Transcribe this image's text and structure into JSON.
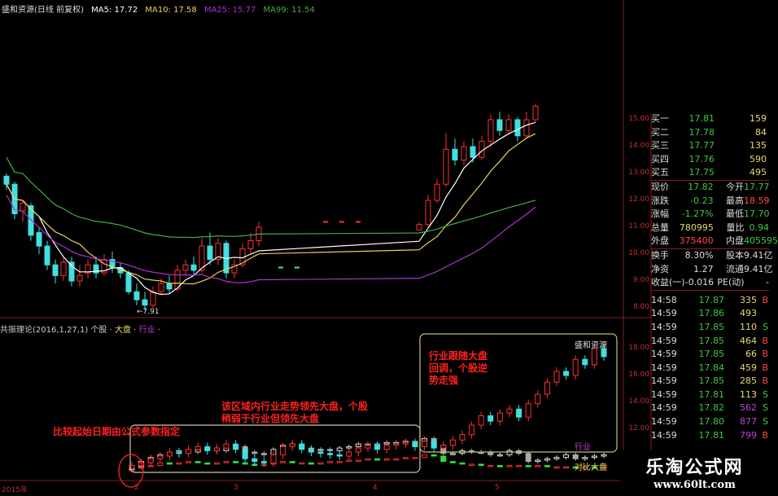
{
  "header": {
    "title": "盛和资源(日线 前复权)",
    "ma5": "MA5: 17.72",
    "ma10": "MA10: 17.58",
    "ma25": "MA25: 15.77",
    "ma99": "MA99: 11.54"
  },
  "colors": {
    "ma5": "#ffffff",
    "ma10": "#e8d060",
    "ma25": "#b030d0",
    "ma99": "#40b040",
    "up": "#ff3030",
    "down": "#40e0e0",
    "axis": "#c03030"
  },
  "main_chart": {
    "price_axis": [
      "15.00",
      "14.00",
      "13.00",
      "12.00",
      "11.00",
      "10.00",
      "9.00",
      "8.00"
    ],
    "low_label": "7.91",
    "candles_left": [
      [
        12.9,
        12.6,
        13.0,
        12.4
      ],
      [
        12.6,
        11.5,
        12.7,
        11.3
      ],
      [
        11.6,
        11.9,
        12.0,
        11.2
      ],
      [
        11.8,
        10.7,
        11.9,
        10.5
      ],
      [
        10.8,
        10.3,
        11.0,
        10.0
      ],
      [
        10.3,
        9.6,
        10.5,
        9.4
      ],
      [
        9.6,
        9.2,
        9.8,
        8.9
      ],
      [
        9.2,
        9.7,
        9.9,
        9.0
      ],
      [
        9.7,
        9.0,
        9.9,
        8.8
      ],
      [
        9.0,
        9.2,
        9.6,
        8.8
      ],
      [
        9.3,
        9.6,
        9.8,
        9.1
      ],
      [
        9.6,
        9.3,
        9.9,
        9.1
      ],
      [
        9.3,
        9.8,
        10.0,
        9.2
      ],
      [
        9.8,
        9.5,
        10.1,
        9.3
      ],
      [
        9.5,
        9.3,
        9.7,
        9.1
      ],
      [
        9.3,
        8.6,
        9.4,
        8.5
      ],
      [
        8.6,
        8.3,
        8.9,
        8.1
      ],
      [
        8.3,
        8.1,
        8.6,
        7.91
      ],
      [
        8.1,
        8.6,
        8.8,
        8.0
      ],
      [
        8.6,
        8.9,
        9.1,
        8.5
      ],
      [
        8.9,
        8.7,
        9.2,
        8.5
      ],
      [
        8.7,
        9.4,
        9.6,
        8.6
      ],
      [
        9.4,
        9.6,
        9.8,
        9.2
      ],
      [
        9.6,
        9.4,
        9.9,
        9.2
      ],
      [
        9.4,
        10.3,
        10.6,
        9.3
      ],
      [
        10.3,
        9.8,
        10.8,
        9.6
      ],
      [
        9.8,
        10.4,
        10.6,
        9.6
      ],
      [
        10.4,
        9.3,
        10.5,
        9.1
      ],
      [
        9.3,
        9.6,
        9.8,
        9.1
      ],
      [
        9.6,
        10.2,
        10.4,
        9.5
      ],
      [
        10.2,
        10.5,
        10.8,
        10.0
      ],
      [
        10.5,
        11.0,
        11.2,
        10.3
      ]
    ],
    "suspended": [
      9.5,
      9.5,
      11.2,
      11.2,
      11.2
    ],
    "candles_right": [
      [
        10.9,
        11.1,
        11.2,
        10.9
      ],
      [
        11.1,
        12.0,
        12.2,
        11.0
      ],
      [
        12.0,
        12.6,
        12.8,
        11.9
      ],
      [
        12.6,
        13.9,
        14.5,
        12.5
      ],
      [
        13.9,
        13.5,
        14.3,
        13.3
      ],
      [
        13.5,
        14.0,
        14.2,
        13.3
      ],
      [
        14.0,
        13.6,
        14.3,
        13.4
      ],
      [
        13.6,
        14.2,
        14.4,
        13.5
      ],
      [
        14.2,
        15.0,
        15.2,
        14.0
      ],
      [
        15.0,
        14.6,
        15.3,
        14.4
      ],
      [
        14.6,
        15.0,
        15.2,
        14.5
      ],
      [
        15.0,
        14.4,
        15.1,
        14.2
      ],
      [
        14.4,
        15.0,
        15.3,
        14.3
      ],
      [
        15.0,
        15.5,
        15.6,
        14.9
      ]
    ]
  },
  "indicator": {
    "title": "共振理论(2016,1,27,1)",
    "legend_stock": "个股",
    "legend_market": "大盘",
    "legend_industry": "行业",
    "axis": [
      "18.00",
      "16.00",
      "14.00",
      "12.00"
    ],
    "stock": [
      9.3,
      9.5,
      9.8,
      10.0,
      10.3,
      10.2,
      10.5,
      10.7,
      10.4,
      10.6,
      10.9,
      10.5,
      9.8,
      9.6,
      9.5,
      10.1,
      10.7,
      10.9,
      10.5,
      10.3,
      10.2,
      10.1,
      10.0,
      10.3,
      10.6,
      10.8,
      10.5,
      10.8,
      10.9,
      11.0,
      10.7,
      11.1,
      10.6,
      10.8,
      11.2,
      11.6,
      12.3,
      13.0,
      12.6,
      13.2,
      13.5,
      12.9,
      13.9,
      14.6,
      15.5,
      16.3,
      16.0,
      17.2,
      16.8,
      18.0,
      17.4
    ],
    "industry": [
      9.2,
      9.6,
      9.9,
      10.1,
      10.2,
      10.4,
      10.3,
      10.5,
      10.6,
      10.4,
      10.8,
      10.7,
      10.3,
      10.2,
      10.1,
      10.5,
      10.8,
      10.9,
      10.6,
      10.5,
      10.5,
      10.4,
      10.6,
      10.7,
      10.9,
      10.8,
      10.9,
      11.0,
      11.0,
      11.1,
      10.9,
      11.3,
      10.8,
      10.2,
      10.2,
      10.4,
      10.3,
      10.3,
      10.1,
      10.1,
      10.4,
      10.2,
      9.6,
      9.7,
      9.8,
      9.9,
      10.1,
      9.8,
      9.9,
      10.0,
      10.1
    ],
    "market": [
      9.1,
      9.2,
      9.3,
      9.5,
      9.4,
      9.5,
      9.6,
      9.5,
      9.4,
      9.5,
      9.6,
      9.5,
      9.4,
      9.3,
      9.4,
      9.5,
      9.6,
      9.5,
      9.5,
      9.4,
      9.5,
      9.6,
      9.6,
      9.7,
      9.7,
      9.8,
      9.7,
      9.8,
      9.8,
      9.9,
      9.9,
      10.1,
      10.0,
      9.6,
      9.5,
      9.4,
      9.4,
      9.3,
      9.3,
      9.2,
      9.3,
      9.3,
      9.2,
      9.3,
      9.2,
      9.2,
      9.2,
      9.1,
      9.2,
      9.1,
      9.2
    ],
    "label_stock": "盛和资源",
    "label_industry": "行业",
    "label_market": "对比大盘",
    "note_start": "比较起始日期由公式参数指定",
    "note_region": "该区域内行业走势领先大盘，个股稍弱于行业但领先大盘",
    "note_right": "行业跟随大盘回调，个股逆势走强"
  },
  "time_axis": [
    "2015年",
    "2",
    "3",
    "4",
    "5"
  ],
  "quote": {
    "bids": [
      {
        "label": "买一",
        "price": "17.81",
        "qty": "159"
      },
      {
        "label": "买二",
        "price": "17.78",
        "qty": "84"
      },
      {
        "label": "买三",
        "price": "17.77",
        "qty": "135"
      },
      {
        "label": "买四",
        "price": "17.76",
        "qty": "590"
      },
      {
        "label": "买五",
        "price": "17.75",
        "qty": "495"
      }
    ],
    "stats1": [
      {
        "l1": "现价",
        "v1": "17.82",
        "c1": "g",
        "l2": "今开",
        "v2": "17.77",
        "c2": "g"
      },
      {
        "l1": "涨跌",
        "v1": "-0.23",
        "c1": "g",
        "l2": "最高",
        "v2": "18.59",
        "c2": "r"
      },
      {
        "l1": "涨幅",
        "v1": "-1.27%",
        "c1": "g",
        "l2": "最低",
        "v2": "17.70",
        "c2": "g"
      },
      {
        "l1": "总量",
        "v1": "780995",
        "c1": "y",
        "l2": "量比",
        "v2": "0.94",
        "c2": "g"
      },
      {
        "l1": "外盘",
        "v1": "375400",
        "c1": "r",
        "l2": "内盘",
        "v2": "405595",
        "c2": "g"
      }
    ],
    "stats2": [
      {
        "l1": "换手",
        "v1": "8.30%",
        "c1": "w",
        "l2": "股本",
        "v2": "9.41亿",
        "c2": "w"
      },
      {
        "l1": "净资",
        "v1": "1.27",
        "c1": "w",
        "l2": "流通",
        "v2": "9.41亿",
        "c2": "w"
      },
      {
        "l1": "收益(一)",
        "v1": "-0.016",
        "c1": "w",
        "l2": "PE(动)",
        "v2": "-",
        "c2": "w"
      }
    ],
    "trades": [
      {
        "time": "14:58",
        "price": "17.87",
        "vol": "335",
        "vc": "y",
        "side": "B"
      },
      {
        "time": "14:59",
        "price": "17.86",
        "vol": "493",
        "vc": "y",
        "side": ""
      },
      {
        "time": "14:59",
        "price": "17.85",
        "vol": "110",
        "vc": "y",
        "side": "S"
      },
      {
        "time": "14:59",
        "price": "17.85",
        "vol": "464",
        "vc": "y",
        "side": "B"
      },
      {
        "time": "14:59",
        "price": "17.85",
        "vol": "66",
        "vc": "y",
        "side": "B"
      },
      {
        "time": "14:59",
        "price": "17.84",
        "vol": "459",
        "vc": "y",
        "side": "B"
      },
      {
        "time": "14:59",
        "price": "17.85",
        "vol": "285",
        "vc": "y",
        "side": "B"
      },
      {
        "time": "14:59",
        "price": "17.81",
        "vol": "113",
        "vc": "y",
        "side": "S"
      },
      {
        "time": "14:59",
        "price": "17.82",
        "vol": "562",
        "vc": "p",
        "side": "S"
      },
      {
        "time": "14:59",
        "price": "17.80",
        "vol": "877",
        "vc": "p",
        "side": "S"
      },
      {
        "time": "14:59",
        "price": "17.81",
        "vol": "799",
        "vc": "p",
        "side": "B"
      }
    ]
  },
  "watermark": {
    "name": "乐淘公式网",
    "url": "www.60lt.com"
  }
}
